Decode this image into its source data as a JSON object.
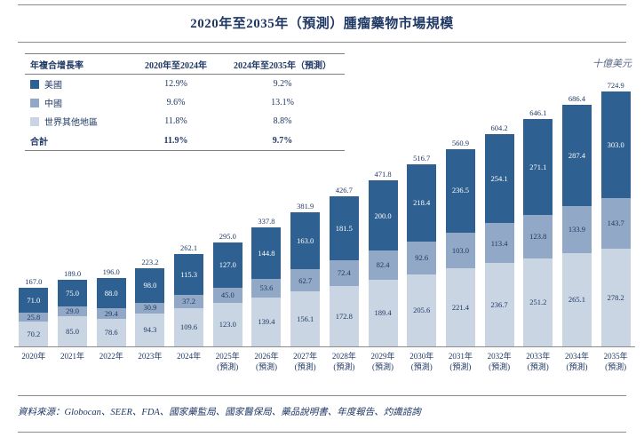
{
  "title": "2020年至2035年（預測）腫瘤藥物市場規模",
  "unit": "十億美元",
  "source": "資料來源：Globocan、SEER、FDA、國家藥監局、國家醫保局、藥品說明書、年度報告、灼識諮詢",
  "legend": {
    "header": [
      "年複合增長率",
      "2020年至2024年",
      "2024年至2035年（預測）"
    ],
    "rows": [
      {
        "label": "美國",
        "cagr_2020_2024": "12.9%",
        "cagr_2024_2035": "9.2%"
      },
      {
        "label": "中國",
        "cagr_2020_2024": "9.6%",
        "cagr_2024_2035": "13.1%"
      },
      {
        "label": "世界其他地區",
        "cagr_2020_2024": "11.8%",
        "cagr_2024_2035": "8.8%"
      }
    ],
    "total_row": {
      "label": "合計",
      "cagr_2020_2024": "11.9%",
      "cagr_2024_2035": "9.7%"
    }
  },
  "chart_data": {
    "type": "bar",
    "stacked": true,
    "title": "2020年至2035年（預測）腫瘤藥物市場規模",
    "ylabel": "十億美元",
    "ylim": [
      0,
      750
    ],
    "legend_position": "top-left",
    "grid": false,
    "categories": [
      "2020年",
      "2021年",
      "2022年",
      "2023年",
      "2024年",
      "2025年",
      "2026年",
      "2027年",
      "2028年",
      "2029年",
      "2030年",
      "2031年",
      "2032年",
      "2033年",
      "2034年",
      "2035年"
    ],
    "forecast_start_index": 5,
    "forecast_suffix": "(預測)",
    "totals": [
      167.0,
      189.0,
      196.0,
      223.2,
      262.1,
      295.0,
      337.8,
      381.9,
      426.7,
      471.8,
      516.7,
      560.9,
      604.2,
      646.1,
      686.4,
      724.9
    ],
    "series": [
      {
        "name": "美國",
        "color": "#2e6191",
        "label_color": "#ffffff",
        "values": [
          71.0,
          75.0,
          88.0,
          98.0,
          115.3,
          127.0,
          144.8,
          163.0,
          181.5,
          200.0,
          218.4,
          236.5,
          254.1,
          271.1,
          287.4,
          303.0
        ]
      },
      {
        "name": "中國",
        "color": "#91a9c6",
        "label_color": "#1f3864",
        "values": [
          25.8,
          29.0,
          29.4,
          30.9,
          37.2,
          45.0,
          53.6,
          62.7,
          72.4,
          82.4,
          92.6,
          103.0,
          113.4,
          123.8,
          133.9,
          143.7
        ]
      },
      {
        "name": "世界其他地區",
        "color": "#c9d5e3",
        "label_color": "#1f3864",
        "values": [
          70.2,
          85.0,
          78.6,
          94.3,
          109.6,
          123.0,
          139.4,
          156.1,
          172.8,
          189.4,
          205.6,
          221.4,
          236.7,
          251.2,
          265.1,
          278.2
        ]
      }
    ]
  }
}
